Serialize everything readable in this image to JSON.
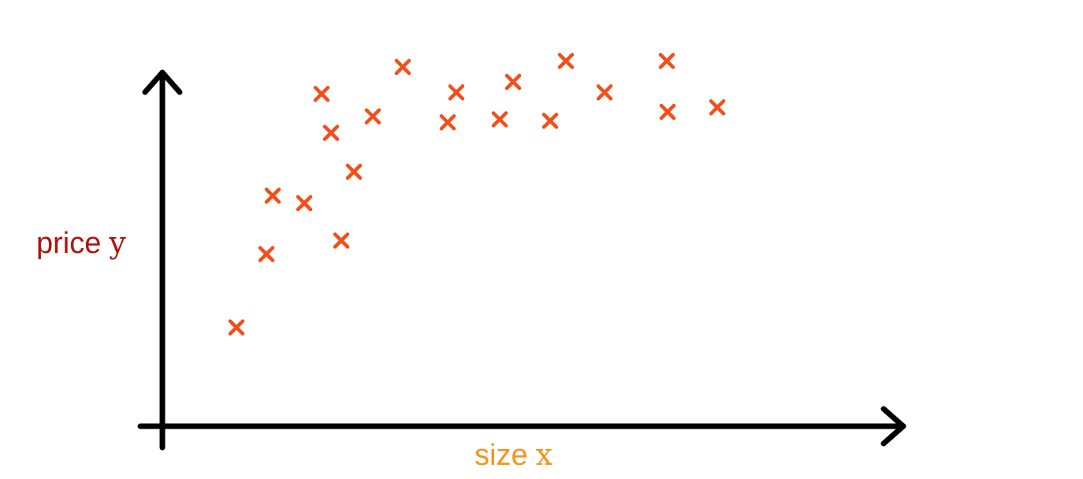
{
  "chart_data": {
    "type": "scatter",
    "marker": "x",
    "marker_color": "#f24f1a",
    "x_axis_color": "#000000",
    "y_axis_color": "#000000",
    "ylabel": {
      "word": "price",
      "var": "y",
      "color": "#b0130d"
    },
    "xlabel": {
      "word": "size",
      "var": "x",
      "color": "#f4951d"
    },
    "xlim": [
      0,
      100
    ],
    "ylim": [
      0,
      100
    ],
    "grid": false,
    "points": [
      {
        "x": 9.4,
        "y": 26.4
      },
      {
        "x": 13.2,
        "y": 46.0
      },
      {
        "x": 14.0,
        "y": 61.6
      },
      {
        "x": 18.0,
        "y": 59.6
      },
      {
        "x": 20.2,
        "y": 88.8
      },
      {
        "x": 21.4,
        "y": 78.4
      },
      {
        "x": 22.7,
        "y": 49.6
      },
      {
        "x": 24.3,
        "y": 68.0
      },
      {
        "x": 26.7,
        "y": 82.8
      },
      {
        "x": 30.5,
        "y": 96.0
      },
      {
        "x": 36.2,
        "y": 81.2
      },
      {
        "x": 37.3,
        "y": 89.2
      },
      {
        "x": 42.8,
        "y": 82.0
      },
      {
        "x": 44.5,
        "y": 92.0
      },
      {
        "x": 49.2,
        "y": 81.6
      },
      {
        "x": 51.2,
        "y": 97.6
      },
      {
        "x": 56.1,
        "y": 89.2
      },
      {
        "x": 64.0,
        "y": 97.6
      },
      {
        "x": 64.1,
        "y": 84.0
      },
      {
        "x": 70.4,
        "y": 85.2
      }
    ]
  }
}
